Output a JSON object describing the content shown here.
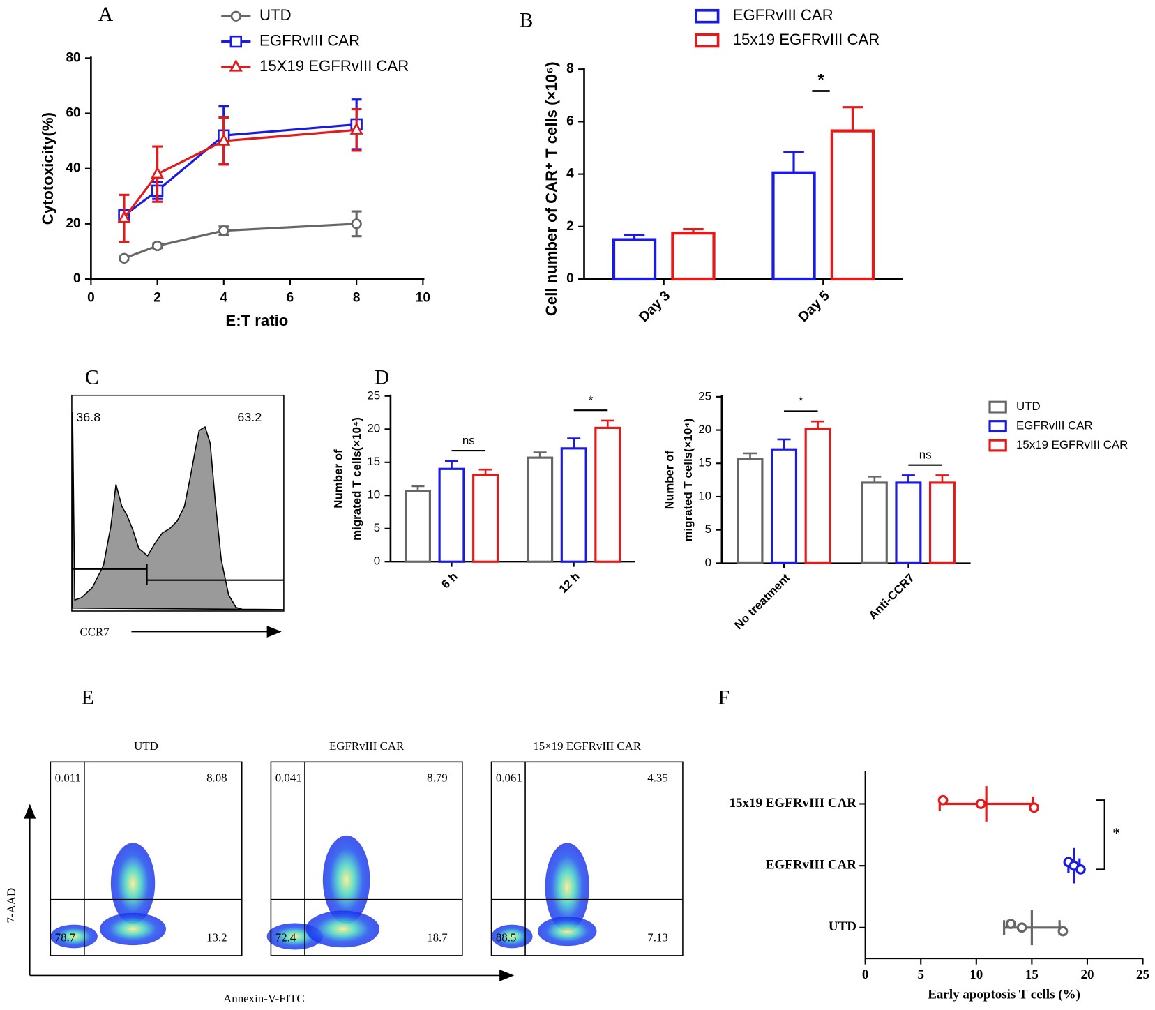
{
  "chart_data": [
    {
      "type": "line",
      "panel": "A",
      "xlabel": "E:T ratio",
      "ylabel": "Cytotoxicity(%)",
      "x": [
        1,
        2,
        4,
        8
      ],
      "xlim": [
        0,
        10
      ],
      "xticks": [
        0,
        2,
        4,
        6,
        8,
        10
      ],
      "ylim": [
        0,
        80
      ],
      "yticks": [
        0,
        20,
        40,
        60,
        80
      ],
      "series": [
        {
          "name": "UTD",
          "color": "#666666",
          "marker": "circle",
          "values": [
            7.5,
            12,
            17.5,
            20
          ],
          "errors": [
            0.5,
            0.8,
            1.5,
            4.5
          ]
        },
        {
          "name": "EGFRvIII CAR",
          "color": "#1a1ae0",
          "marker": "square",
          "values": [
            23,
            32,
            52,
            56
          ],
          "errors": [
            2,
            3,
            10.5,
            9
          ]
        },
        {
          "name": "15X19 EGFRvIII CAR",
          "color": "#e31a1a",
          "marker": "triangle",
          "values": [
            22,
            38,
            50,
            54
          ],
          "errors": [
            8.5,
            10,
            8.5,
            7.5
          ]
        }
      ]
    },
    {
      "type": "bar",
      "panel": "B",
      "ylabel": "Cell number of CAR⁺ T cells (×10⁶)",
      "categories": [
        "Day 3",
        "Day 5"
      ],
      "ylim": [
        0,
        8
      ],
      "yticks": [
        0,
        2,
        4,
        6,
        8
      ],
      "series": [
        {
          "name": "EGFRvIII CAR",
          "color": "#1a1ae0",
          "values": [
            1.5,
            4.05
          ],
          "errors": [
            0.18,
            0.8
          ]
        },
        {
          "name": "15x19 EGFRvIII CAR",
          "color": "#e31a1a",
          "values": [
            1.75,
            5.65
          ],
          "errors": [
            0.15,
            0.9
          ]
        }
      ],
      "annotations": [
        null,
        "*"
      ]
    },
    {
      "type": "flow-histogram",
      "panel": "C",
      "gates": [
        36.8,
        63.2
      ],
      "xlabel": "CCR7"
    },
    {
      "type": "grouped-bars",
      "panel": "D",
      "ylabel": [
        "Number of",
        "migrated T cells(×10⁴)"
      ],
      "ylim": [
        0,
        25
      ],
      "yticks": [
        0,
        5,
        10,
        15,
        20,
        25
      ],
      "series": [
        {
          "name": "UTD",
          "color": "#666666"
        },
        {
          "name": "EGFRvIII CAR",
          "color": "#1a1ae0"
        },
        {
          "name": "15x19 EGFRvIII CAR",
          "color": "#e31a1a"
        }
      ],
      "subplots": [
        {
          "categories": [
            "6 h",
            "12 h"
          ],
          "values": [
            [
              10.7,
              15.7
            ],
            [
              14,
              17.1
            ],
            [
              13.1,
              20.2
            ]
          ],
          "errors": [
            [
              0.7,
              0.8
            ],
            [
              1.2,
              1.5
            ],
            [
              0.8,
              1.1
            ]
          ],
          "annotations": [
            "ns",
            "*"
          ]
        },
        {
          "categories": [
            "No treatment",
            "Anti-CCR7"
          ],
          "values": [
            [
              15.7,
              12.1
            ],
            [
              17.1,
              12.1
            ],
            [
              20.2,
              12.1
            ]
          ],
          "errors": [
            [
              0.8,
              0.9
            ],
            [
              1.5,
              1.1
            ],
            [
              1.1,
              1.1
            ]
          ],
          "annotations": [
            "*",
            "ns"
          ]
        }
      ]
    },
    {
      "type": "flow-scatter",
      "panel": "E",
      "xlabel": "Annexin-V-FITC",
      "ylabel": "7-AAD",
      "plots": [
        {
          "title": "UTD",
          "quadrants": [
            0.011,
            8.08,
            78.7,
            13.2
          ]
        },
        {
          "title": "EGFRvIII CAR",
          "quadrants": [
            0.041,
            8.79,
            72.4,
            18.7
          ]
        },
        {
          "title": "15×19 EGFRvIII CAR",
          "quadrants": [
            0.061,
            4.35,
            88.5,
            7.13
          ]
        }
      ]
    },
    {
      "type": "dot",
      "panel": "F",
      "xlabel": "Early apoptosis T cells (%)",
      "xlim": [
        0,
        25
      ],
      "xticks": [
        0,
        5,
        10,
        15,
        20,
        25
      ],
      "categories": [
        "15x19 EGFRvIII CAR",
        "EGFRvIII CAR",
        "UTD"
      ],
      "colors": [
        "#e31a1a",
        "#1a1ae0",
        "#666666"
      ],
      "points": [
        [
          7,
          10.4,
          15.2
        ],
        [
          18.3,
          18.8,
          19.4
        ],
        [
          13.1,
          14.1,
          17.8
        ]
      ],
      "means": [
        10.9,
        18.8,
        15
      ],
      "sds": [
        4.2,
        0.5,
        2.5
      ],
      "annotations": [
        "*"
      ]
    }
  ]
}
